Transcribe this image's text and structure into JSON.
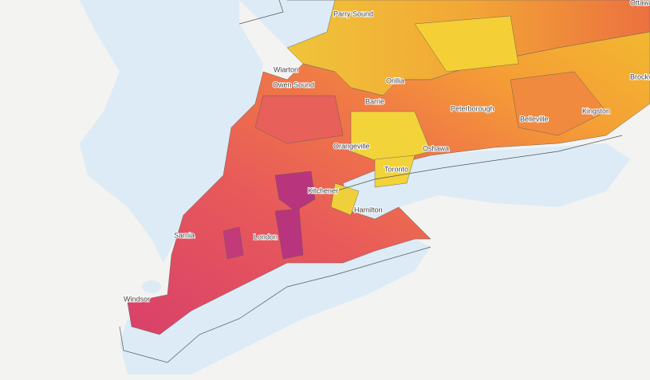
{
  "map": {
    "labels": [
      "Parry Sound",
      "Wiarton",
      "Owen Sound",
      "Orillia",
      "Barrie",
      "Peterborough",
      "Belleville",
      "Kingston",
      "Brockville",
      "Ottawa",
      "Orangeville",
      "Oshawa",
      "Toronto",
      "Kitchener",
      "Hamilton",
      "London",
      "Sarnia",
      "Windsor"
    ]
  }
}
